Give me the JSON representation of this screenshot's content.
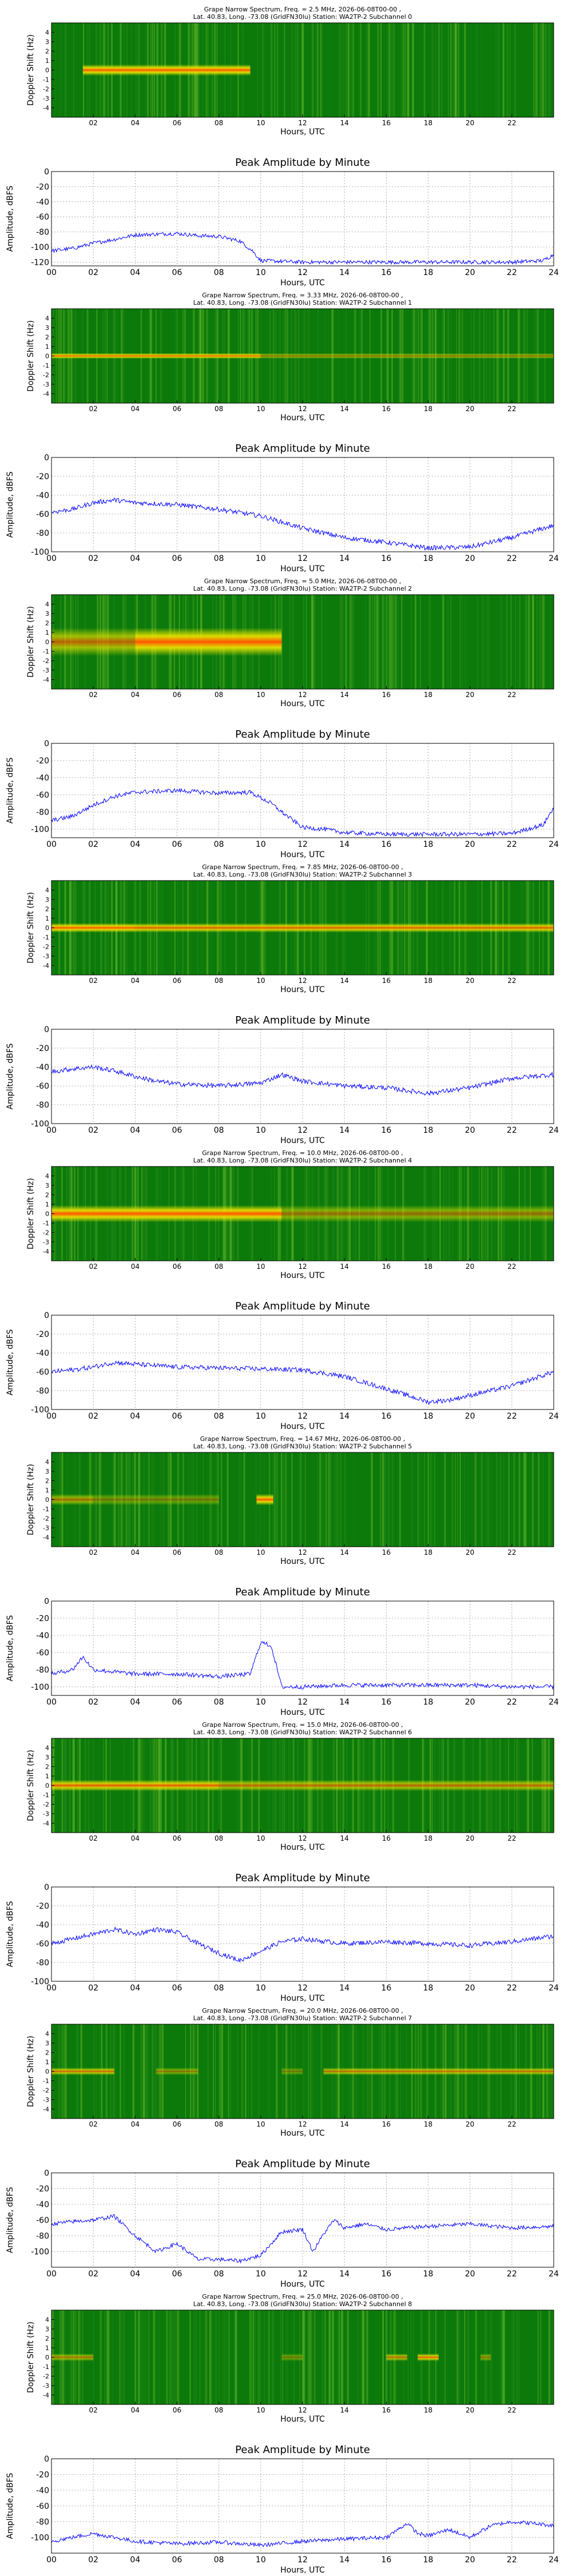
{
  "chart_data": [
    {
      "type": "heatmap",
      "title": "Grape Narrow Spectrum, Freq. = 2.5 MHz, 2026-06-08T00-00 ,",
      "subtitle": "Lat.  40.83, Long. -73.08 (GridFN30lu) Station: WA2TP-2 Subchannel 0",
      "xlabel": "Hours, UTC",
      "ylabel": "Doppler Shift (Hz)",
      "xlim": [
        0,
        24
      ],
      "ylim": [
        -5,
        5
      ],
      "xticks": [
        "02",
        "04",
        "06",
        "08",
        "10",
        "12",
        "14",
        "16",
        "18",
        "20",
        "22"
      ],
      "yticks": [
        "4",
        "3",
        "2",
        "1",
        "0",
        "-1",
        "-2",
        "-3",
        "-4"
      ],
      "band_hz": 0.6,
      "segments": [
        [
          1.5,
          9.5,
          1.0
        ]
      ]
    },
    {
      "type": "line",
      "title": "Peak Amplitude by Minute",
      "xlabel": "Hours, UTC",
      "ylabel": "Amplitude, dBFS",
      "xlim": [
        0,
        24
      ],
      "ylim": [
        -125,
        0
      ],
      "xticks": [
        "00",
        "02",
        "04",
        "06",
        "08",
        "10",
        "12",
        "14",
        "16",
        "18",
        "20",
        "22",
        "24"
      ],
      "yticks": [
        "0",
        "-20",
        "-40",
        "-60",
        "-80",
        "-100",
        "-120"
      ],
      "x": [
        0,
        1,
        2,
        3,
        4,
        5,
        6,
        7,
        8,
        9,
        9.6,
        10,
        12,
        14,
        16,
        18,
        20,
        22,
        23.5,
        24
      ],
      "values": [
        -105,
        -102,
        -95,
        -90,
        -84,
        -83,
        -82,
        -85,
        -86,
        -92,
        -105,
        -118,
        -120,
        -120,
        -120,
        -120,
        -120,
        -120,
        -118,
        -110
      ]
    },
    {
      "type": "heatmap",
      "title": "Grape Narrow Spectrum, Freq. = 3.33 MHz, 2026-06-08T00-00 ,",
      "subtitle": "Lat.  40.83, Long. -73.08 (GridFN30lu) Station: WA2TP-2 Subchannel 1",
      "xlabel": "Hours, UTC",
      "ylabel": "Doppler Shift (Hz)",
      "xlim": [
        0,
        24
      ],
      "ylim": [
        -5,
        5
      ],
      "xticks": [
        "02",
        "04",
        "06",
        "08",
        "10",
        "12",
        "14",
        "16",
        "18",
        "20",
        "22"
      ],
      "yticks": [
        "4",
        "3",
        "2",
        "1",
        "0",
        "-1",
        "-2",
        "-3",
        "-4"
      ],
      "band_hz": 0.3,
      "segments": [
        [
          0,
          10,
          0.95
        ],
        [
          10,
          24,
          0.55
        ]
      ]
    },
    {
      "type": "line",
      "title": "Peak Amplitude by Minute",
      "xlabel": "Hours, UTC",
      "ylabel": "Amplitude, dBFS",
      "xlim": [
        0,
        24
      ],
      "ylim": [
        -100,
        0
      ],
      "xticks": [
        "00",
        "02",
        "04",
        "06",
        "08",
        "10",
        "12",
        "14",
        "16",
        "18",
        "20",
        "22",
        "24"
      ],
      "yticks": [
        "0",
        "-20",
        "-40",
        "-60",
        "-80",
        "-100"
      ],
      "x": [
        0,
        1,
        2,
        3,
        4,
        6,
        8,
        10,
        12,
        14,
        16,
        18,
        20,
        22,
        24
      ],
      "values": [
        -58,
        -55,
        -48,
        -45,
        -48,
        -50,
        -55,
        -62,
        -75,
        -85,
        -90,
        -96,
        -95,
        -85,
        -72
      ]
    },
    {
      "type": "heatmap",
      "title": "Grape Narrow Spectrum, Freq. = 5.0 MHz, 2026-06-08T00-00 ,",
      "subtitle": "Lat.  40.83, Long. -73.08 (GridFN30lu) Station: WA2TP-2 Subchannel 2",
      "xlabel": "Hours, UTC",
      "ylabel": "Doppler Shift (Hz)",
      "xlim": [
        0,
        24
      ],
      "ylim": [
        -5,
        5
      ],
      "xticks": [
        "02",
        "04",
        "06",
        "08",
        "10",
        "12",
        "14",
        "16",
        "18",
        "20",
        "22"
      ],
      "yticks": [
        "4",
        "3",
        "2",
        "1",
        "0",
        "-1",
        "-2",
        "-3",
        "-4"
      ],
      "band_hz": 1.5,
      "segments": [
        [
          0,
          4,
          0.7
        ],
        [
          4,
          11,
          1.0
        ]
      ]
    },
    {
      "type": "line",
      "title": "Peak Amplitude by Minute",
      "xlabel": "Hours, UTC",
      "ylabel": "Amplitude, dBFS",
      "xlim": [
        0,
        24
      ],
      "ylim": [
        -110,
        0
      ],
      "xticks": [
        "00",
        "02",
        "04",
        "06",
        "08",
        "10",
        "12",
        "14",
        "16",
        "18",
        "20",
        "22",
        "24"
      ],
      "yticks": [
        "0",
        "-20",
        "-40",
        "-60",
        "-80",
        "-100"
      ],
      "x": [
        0,
        1,
        2,
        3,
        4,
        6,
        8,
        9.5,
        10.5,
        11,
        12,
        13,
        14,
        16,
        18,
        20,
        22,
        23.5,
        24
      ],
      "values": [
        -90,
        -85,
        -72,
        -62,
        -57,
        -55,
        -58,
        -57,
        -70,
        -80,
        -98,
        -100,
        -104,
        -106,
        -106,
        -106,
        -105,
        -95,
        -75
      ]
    },
    {
      "type": "heatmap",
      "title": "Grape Narrow Spectrum, Freq. = 7.85 MHz, 2026-06-08T00-00 ,",
      "subtitle": "Lat.  40.83, Long. -73.08 (GridFN30lu) Station: WA2TP-2 Subchannel 3",
      "xlabel": "Hours, UTC",
      "ylabel": "Doppler Shift (Hz)",
      "xlim": [
        0,
        24
      ],
      "ylim": [
        -5,
        5
      ],
      "xticks": [
        "02",
        "04",
        "06",
        "08",
        "10",
        "12",
        "14",
        "16",
        "18",
        "20",
        "22"
      ],
      "yticks": [
        "4",
        "3",
        "2",
        "1",
        "0",
        "-1",
        "-2",
        "-3",
        "-4"
      ],
      "band_hz": 0.5,
      "segments": [
        [
          0,
          4,
          1.0
        ],
        [
          4,
          24,
          0.9
        ]
      ]
    },
    {
      "type": "line",
      "title": "Peak Amplitude by Minute",
      "xlabel": "Hours, UTC",
      "ylabel": "Amplitude, dBFS",
      "xlim": [
        0,
        24
      ],
      "ylim": [
        -100,
        0
      ],
      "xticks": [
        "00",
        "02",
        "04",
        "06",
        "08",
        "10",
        "12",
        "14",
        "16",
        "18",
        "20",
        "22",
        "24"
      ],
      "yticks": [
        "0",
        "-20",
        "-40",
        "-60",
        "-80",
        "-100"
      ],
      "x": [
        0,
        1,
        2,
        3,
        4,
        5,
        6,
        8,
        10,
        11,
        12,
        14,
        16,
        18,
        20,
        22,
        24
      ],
      "values": [
        -45,
        -42,
        -40,
        -44,
        -50,
        -55,
        -58,
        -60,
        -57,
        -48,
        -55,
        -60,
        -62,
        -68,
        -62,
        -52,
        -48
      ]
    },
    {
      "type": "heatmap",
      "title": "Grape Narrow Spectrum, Freq. = 10.0 MHz, 2026-06-08T00-00 ,",
      "subtitle": "Lat.  40.83, Long. -73.08 (GridFN30lu) Station: WA2TP-2 Subchannel 4",
      "xlabel": "Hours, UTC",
      "ylabel": "Doppler Shift (Hz)",
      "xlim": [
        0,
        24
      ],
      "ylim": [
        -5,
        5
      ],
      "xticks": [
        "02",
        "04",
        "06",
        "08",
        "10",
        "12",
        "14",
        "16",
        "18",
        "20",
        "22"
      ],
      "yticks": [
        "4",
        "3",
        "2",
        "1",
        "0",
        "-1",
        "-2",
        "-3",
        "-4"
      ],
      "band_hz": 0.9,
      "segments": [
        [
          0,
          11,
          1.0
        ],
        [
          11,
          24,
          0.55
        ]
      ]
    },
    {
      "type": "line",
      "title": "Peak Amplitude by Minute",
      "xlabel": "Hours, UTC",
      "ylabel": "Amplitude, dBFS",
      "xlim": [
        0,
        24
      ],
      "ylim": [
        -100,
        0
      ],
      "xticks": [
        "00",
        "02",
        "04",
        "06",
        "08",
        "10",
        "12",
        "14",
        "16",
        "18",
        "20",
        "22",
        "24"
      ],
      "yticks": [
        "0",
        "-20",
        "-40",
        "-60",
        "-80",
        "-100"
      ],
      "x": [
        0,
        1,
        2,
        3,
        4,
        6,
        8,
        10,
        12,
        14,
        16,
        17,
        18,
        19,
        20,
        22,
        24
      ],
      "values": [
        -60,
        -58,
        -55,
        -50,
        -52,
        -55,
        -56,
        -57,
        -58,
        -65,
        -78,
        -85,
        -92,
        -90,
        -85,
        -75,
        -60
      ]
    },
    {
      "type": "heatmap",
      "title": "Grape Narrow Spectrum, Freq. = 14.67 MHz, 2026-06-08T00-00 ,",
      "subtitle": "Lat.  40.83, Long. -73.08 (GridFN30lu) Station: WA2TP-2 Subchannel 5",
      "xlabel": "Hours, UTC",
      "ylabel": "Doppler Shift (Hz)",
      "xlim": [
        0,
        24
      ],
      "ylim": [
        -5,
        5
      ],
      "xticks": [
        "02",
        "04",
        "06",
        "08",
        "10",
        "12",
        "14",
        "16",
        "18",
        "20",
        "22"
      ],
      "yticks": [
        "4",
        "3",
        "2",
        "1",
        "0",
        "-1",
        "-2",
        "-3",
        "-4"
      ],
      "band_hz": 0.6,
      "segments": [
        [
          0,
          2,
          0.6
        ],
        [
          2,
          8,
          0.4
        ],
        [
          9.8,
          10.6,
          1.0
        ]
      ]
    },
    {
      "type": "line",
      "title": "Peak Amplitude by Minute",
      "xlabel": "Hours, UTC",
      "ylabel": "Amplitude, dBFS",
      "xlim": [
        0,
        24
      ],
      "ylim": [
        -110,
        0
      ],
      "xticks": [
        "00",
        "02",
        "04",
        "06",
        "08",
        "10",
        "12",
        "14",
        "16",
        "18",
        "20",
        "22",
        "24"
      ],
      "yticks": [
        "0",
        "-20",
        "-40",
        "-60",
        "-80",
        "-100"
      ],
      "x": [
        0,
        1,
        1.5,
        2,
        4,
        6,
        8,
        9.5,
        10,
        10.5,
        11,
        12,
        14,
        16,
        18,
        20,
        22,
        24
      ],
      "values": [
        -85,
        -80,
        -65,
        -80,
        -85,
        -85,
        -88,
        -85,
        -48,
        -52,
        -100,
        -100,
        -98,
        -98,
        -98,
        -98,
        -100,
        -100
      ]
    },
    {
      "type": "heatmap",
      "title": "Grape Narrow Spectrum, Freq. = 15.0 MHz, 2026-06-08T00-00 ,",
      "subtitle": "Lat.  40.83, Long. -73.08 (GridFN30lu) Station: WA2TP-2 Subchannel 6",
      "xlabel": "Hours, UTC",
      "ylabel": "Doppler Shift (Hz)",
      "xlim": [
        0,
        24
      ],
      "ylim": [
        -5,
        5
      ],
      "xticks": [
        "02",
        "04",
        "06",
        "08",
        "10",
        "12",
        "14",
        "16",
        "18",
        "20",
        "22"
      ],
      "yticks": [
        "4",
        "3",
        "2",
        "1",
        "0",
        "-1",
        "-2",
        "-3",
        "-4"
      ],
      "band_hz": 0.6,
      "segments": [
        [
          0,
          8,
          0.9
        ],
        [
          8,
          24,
          0.7
        ]
      ]
    },
    {
      "type": "line",
      "title": "Peak Amplitude by Minute",
      "xlabel": "Hours, UTC",
      "ylabel": "Amplitude, dBFS",
      "xlim": [
        0,
        24
      ],
      "ylim": [
        -100,
        0
      ],
      "xticks": [
        "00",
        "02",
        "04",
        "06",
        "08",
        "10",
        "12",
        "14",
        "16",
        "18",
        "20",
        "22",
        "24"
      ],
      "yticks": [
        "0",
        "-20",
        "-40",
        "-60",
        "-80",
        "-100"
      ],
      "x": [
        0,
        1,
        2,
        3,
        4,
        5,
        6,
        7,
        8,
        9,
        10,
        11,
        12,
        14,
        16,
        18,
        20,
        22,
        24
      ],
      "values": [
        -60,
        -55,
        -50,
        -45,
        -50,
        -45,
        -48,
        -60,
        -70,
        -78,
        -68,
        -58,
        -55,
        -60,
        -58,
        -60,
        -62,
        -58,
        -52
      ]
    },
    {
      "type": "heatmap",
      "title": "Grape Narrow Spectrum, Freq. = 20.0 MHz, 2026-06-08T00-00 ,",
      "subtitle": "Lat.  40.83, Long. -73.08 (GridFN30lu) Station: WA2TP-2 Subchannel 7",
      "xlabel": "Hours, UTC",
      "ylabel": "Doppler Shift (Hz)",
      "xlim": [
        0,
        24
      ],
      "ylim": [
        -5,
        5
      ],
      "xticks": [
        "02",
        "04",
        "06",
        "08",
        "10",
        "12",
        "14",
        "16",
        "18",
        "20",
        "22"
      ],
      "yticks": [
        "4",
        "3",
        "2",
        "1",
        "0",
        "-1",
        "-2",
        "-3",
        "-4"
      ],
      "band_hz": 0.4,
      "segments": [
        [
          0,
          3,
          0.8
        ],
        [
          5,
          7,
          0.5
        ],
        [
          11,
          12,
          0.4
        ],
        [
          13,
          14,
          0.7
        ],
        [
          14,
          24,
          0.75
        ]
      ]
    },
    {
      "type": "line",
      "title": "Peak Amplitude by Minute",
      "xlabel": "Hours, UTC",
      "ylabel": "Amplitude, dBFS",
      "xlim": [
        0,
        24
      ],
      "ylim": [
        -120,
        0
      ],
      "xticks": [
        "00",
        "02",
        "04",
        "06",
        "08",
        "10",
        "12",
        "14",
        "16",
        "18",
        "20",
        "22",
        "24"
      ],
      "yticks": [
        "0",
        "-20",
        "-40",
        "-60",
        "-80",
        "-100"
      ],
      "x": [
        0,
        1,
        2,
        3,
        4,
        5,
        6,
        7,
        8,
        9,
        10,
        11,
        12,
        12.5,
        13,
        13.5,
        14,
        15,
        16,
        18,
        20,
        22,
        24
      ],
      "values": [
        -65,
        -62,
        -60,
        -55,
        -80,
        -100,
        -90,
        -110,
        -110,
        -112,
        -105,
        -75,
        -72,
        -100,
        -78,
        -60,
        -70,
        -65,
        -72,
        -68,
        -65,
        -70,
        -68
      ]
    },
    {
      "type": "heatmap",
      "title": "Grape Narrow Spectrum, Freq. = 25.0 MHz, 2026-06-08T00-00 ,",
      "subtitle": "Lat.  40.83, Long. -73.08 (GridFN30lu) Station: WA2TP-2 Subchannel 8",
      "xlabel": "Hours, UTC",
      "ylabel": "Doppler Shift (Hz)",
      "xlim": [
        0,
        24
      ],
      "ylim": [
        -5,
        5
      ],
      "xticks": [
        "02",
        "04",
        "06",
        "08",
        "10",
        "12",
        "14",
        "16",
        "18",
        "20",
        "22"
      ],
      "yticks": [
        "4",
        "3",
        "2",
        "1",
        "0",
        "-1",
        "-2",
        "-3",
        "-4"
      ],
      "band_hz": 0.4,
      "segments": [
        [
          0,
          2,
          0.6
        ],
        [
          11,
          12,
          0.4
        ],
        [
          16,
          17,
          0.7
        ],
        [
          17.5,
          18.5,
          0.9
        ],
        [
          20.5,
          21,
          0.5
        ]
      ]
    },
    {
      "type": "line",
      "title": "Peak Amplitude by Minute",
      "xlabel": "Hours, UTC",
      "ylabel": "Amplitude, dBFS",
      "xlim": [
        0,
        24
      ],
      "ylim": [
        -120,
        0
      ],
      "xticks": [
        "00",
        "02",
        "04",
        "06",
        "08",
        "10",
        "12",
        "14",
        "16",
        "18",
        "20",
        "22",
        "24"
      ],
      "yticks": [
        "0",
        "-20",
        "-40",
        "-60",
        "-80",
        "-100"
      ],
      "x": [
        0,
        1,
        2,
        3,
        4,
        6,
        8,
        10,
        12,
        14,
        16,
        17,
        17.5,
        18,
        19,
        20,
        21,
        22,
        23,
        24
      ],
      "values": [
        -105,
        -100,
        -95,
        -100,
        -105,
        -108,
        -106,
        -110,
        -105,
        -102,
        -100,
        -82,
        -95,
        -98,
        -90,
        -100,
        -85,
        -80,
        -82,
        -85
      ]
    }
  ],
  "colors": {
    "line": "#0000ff",
    "heat_low": "#0b7a0b",
    "heat_mid": "#f2e600",
    "heat_high": "#ff5500"
  }
}
